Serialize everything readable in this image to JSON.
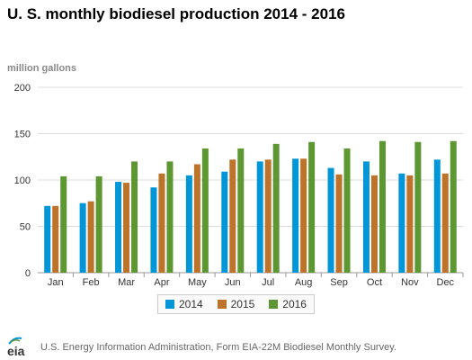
{
  "title": "U. S. monthly biodiesel production 2014 - 2016",
  "unit_label": "million gallons",
  "source": "U.S. Energy Information Administration, Form EIA-22M Biodiesel Monthly Survey.",
  "logo_text": "eia",
  "colors": {
    "2014": "#0096d7",
    "2015": "#bd732a",
    "2016": "#5d9732",
    "grid": "#dddddd",
    "axis": "#999999"
  },
  "chart_data": {
    "type": "bar",
    "title": "U. S. monthly biodiesel production 2014 - 2016",
    "ylabel": "million gallons",
    "xlabel": "",
    "ylim": [
      0,
      200
    ],
    "yticks": [
      0,
      50,
      100,
      150,
      200
    ],
    "grid": true,
    "legend": "bottom",
    "categories": [
      "Jan",
      "Feb",
      "Mar",
      "Apr",
      "May",
      "Jun",
      "Jul",
      "Aug",
      "Sep",
      "Oct",
      "Nov",
      "Dec"
    ],
    "series": [
      {
        "name": "2014",
        "values": [
          72,
          75,
          98,
          92,
          105,
          109,
          120,
          123,
          113,
          120,
          107,
          122
        ]
      },
      {
        "name": "2015",
        "values": [
          72,
          77,
          97,
          107,
          117,
          122,
          122,
          123,
          106,
          105,
          105,
          107
        ]
      },
      {
        "name": "2016",
        "values": [
          104,
          104,
          120,
          120,
          134,
          134,
          139,
          141,
          134,
          142,
          141,
          142
        ]
      }
    ]
  }
}
